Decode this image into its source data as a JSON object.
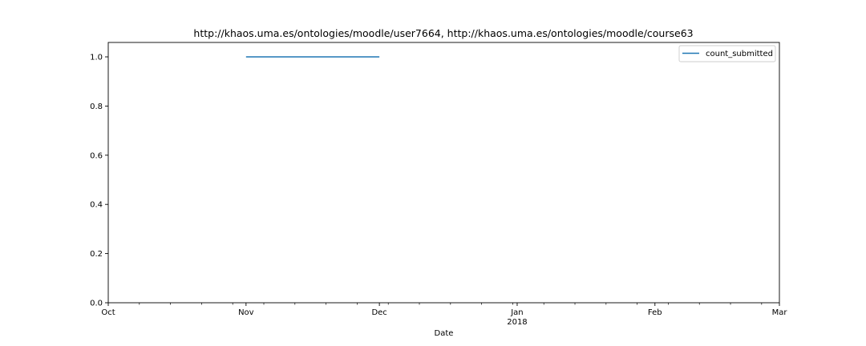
{
  "chart_data": {
    "type": "line",
    "title": "http://khaos.uma.es/ontologies/moodle/user7664, http://khaos.uma.es/ontologies/moodle/course63",
    "xlabel": "Date",
    "ylabel": "",
    "x_range": [
      "2017-10-01",
      "2018-03-01"
    ],
    "ylim": [
      0.0,
      1.0
    ],
    "x_ticks": [
      {
        "date": "2017-10-01",
        "label": "Oct",
        "sublabel": ""
      },
      {
        "date": "2017-11-01",
        "label": "Nov",
        "sublabel": ""
      },
      {
        "date": "2017-12-01",
        "label": "Dec",
        "sublabel": ""
      },
      {
        "date": "2018-01-01",
        "label": "Jan",
        "sublabel": "2018"
      },
      {
        "date": "2018-02-01",
        "label": "Feb",
        "sublabel": ""
      },
      {
        "date": "2018-03-01",
        "label": "Mar",
        "sublabel": ""
      }
    ],
    "y_ticks": [
      {
        "value": 0.0,
        "label": "0.0"
      },
      {
        "value": 0.2,
        "label": "0.2"
      },
      {
        "value": 0.4,
        "label": "0.4"
      },
      {
        "value": 0.6,
        "label": "0.6"
      },
      {
        "value": 0.8,
        "label": "0.8"
      },
      {
        "value": 1.0,
        "label": "1.0"
      }
    ],
    "grid": false,
    "legend_position": "top-right",
    "series": [
      {
        "name": "count_submitted",
        "color": "#1f77b4",
        "points": [
          {
            "x": "2017-11-01",
            "y": 1.0
          },
          {
            "x": "2017-12-01",
            "y": 1.0
          }
        ]
      }
    ]
  }
}
